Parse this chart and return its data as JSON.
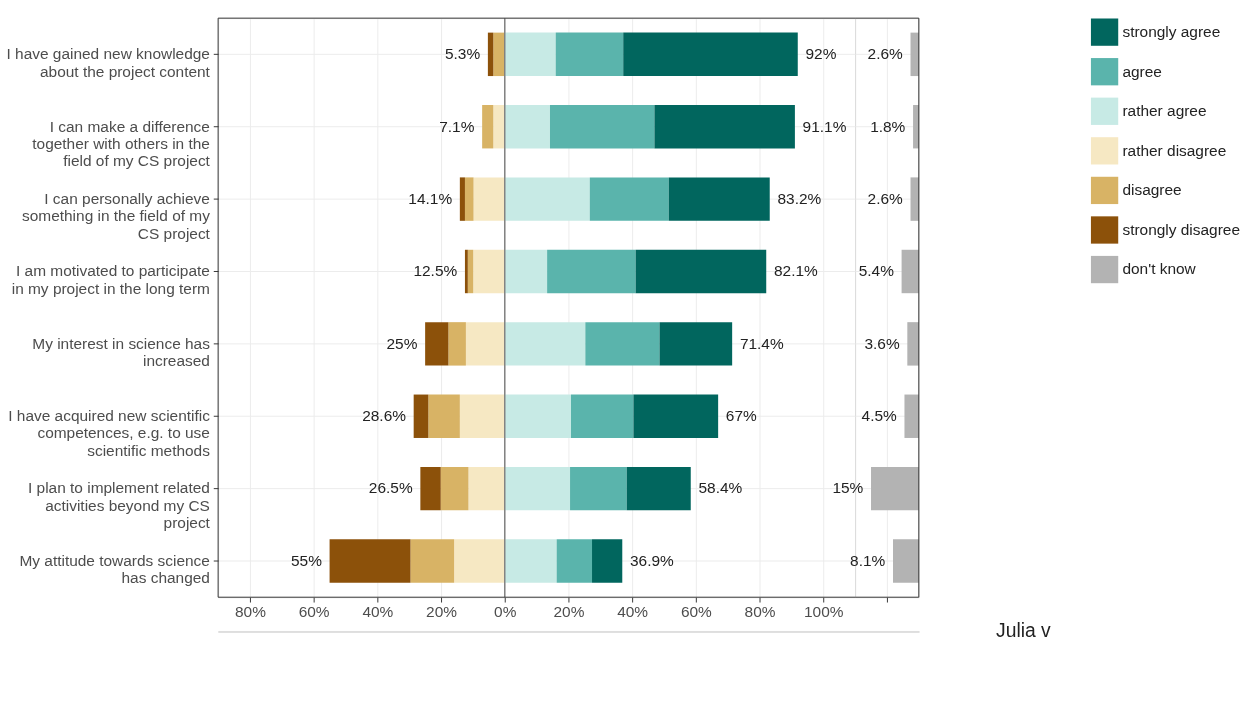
{
  "chart_data": [
    {
      "type": "bar",
      "orientation": "horizontal",
      "stacked": true,
      "categories": [
        "I have gained new knowledge\nabout the project content",
        "I can make a difference\ntogether with others in the\nfield of my CS project",
        "I can personally achieve\nsomething in the field of my\nCS project",
        "I am motivated to participate\nin my project in the long term",
        "My interest in science has\nincreased",
        "I have acquired new scientific\ncompetences, e.g. to use\nscientific methods",
        "I plan to implement related\nactivities beyond my CS\nproject",
        "My attitude towards science\nhas changed"
      ],
      "series": [
        {
          "name": "rather agree",
          "color": "#c7eae5",
          "values": [
            16.0,
            14.2,
            26.7,
            13.3,
            25.3,
            20.8,
            20.5,
            16.3
          ]
        },
        {
          "name": "agree",
          "color": "#5ab4ac",
          "values": [
            21.2,
            32.8,
            24.8,
            27.8,
            23.3,
            19.6,
            17.8,
            11.1
          ]
        },
        {
          "name": "strongly agree",
          "color": "#01665e",
          "values": [
            54.8,
            44.1,
            31.7,
            41.0,
            22.8,
            26.6,
            20.1,
            9.5
          ]
        },
        {
          "name": "rather disagree",
          "color": "#f6e8c3",
          "values": [
            0,
            -3.6,
            -9.8,
            -9.9,
            -12.2,
            -14.1,
            -11.4,
            -15.9
          ]
        },
        {
          "name": "disagree",
          "color": "#d8b365",
          "values": [
            -3.6,
            -3.5,
            -2.7,
            -1.7,
            -5.5,
            -9.9,
            -8.7,
            -13.7
          ]
        },
        {
          "name": "strongly disagree",
          "color": "#8c510a",
          "values": [
            -1.7,
            0,
            -1.6,
            -0.9,
            -7.3,
            -4.6,
            -6.4,
            -25.4
          ]
        }
      ],
      "xlim": [
        -90,
        110
      ],
      "xticks": [
        {
          "value": -80,
          "label": "80%"
        },
        {
          "value": -60,
          "label": "60%"
        },
        {
          "value": -40,
          "label": "40%"
        },
        {
          "value": -20,
          "label": "20%"
        },
        {
          "value": 0,
          "label": "0%"
        },
        {
          "value": 20,
          "label": "20%"
        },
        {
          "value": 40,
          "label": "40%"
        },
        {
          "value": 60,
          "label": "60%"
        },
        {
          "value": 80,
          "label": "80%"
        },
        {
          "value": 100,
          "label": "100%"
        }
      ],
      "ref_lines": [
        {
          "axis": "x",
          "value": 0,
          "color": "#7f7f7f"
        }
      ],
      "grid": true,
      "legend": "right",
      "annotations": [
        {
          "text": "5.3%",
          "x": -5.3,
          "y": "I have gained new knowledge\nabout the project content"
        },
        {
          "text": "7.1%",
          "x": -7.1,
          "y": "I can make a difference\ntogether with others in the\nfield of my CS project"
        },
        {
          "text": "14.1%",
          "x": -14.1,
          "y": "I can personally achieve\nsomething in the field of my\nCS project"
        },
        {
          "text": "12.5%",
          "x": -12.5,
          "y": "I am motivated to participate\nin my project in the long term"
        },
        {
          "text": "25%",
          "x": -25,
          "y": "My interest in science has\nincreased"
        },
        {
          "text": "28.6%",
          "x": -28.6,
          "y": "I have acquired new scientific\ncompetences, e.g. to use\nscientific methods"
        },
        {
          "text": "26.5%",
          "x": -26.5,
          "y": "I plan to implement related\nactivities beyond my CS\nproject"
        },
        {
          "text": "55%",
          "x": -55,
          "y": "My attitude towards science\nhas changed"
        },
        {
          "text": "92%",
          "x": 92,
          "y": "I have gained new knowledge\nabout the project content"
        },
        {
          "text": "91.1%",
          "x": 91.1,
          "y": "I can make a difference\ntogether with others in the\nfield of my CS project"
        },
        {
          "text": "83.2%",
          "x": 83.2,
          "y": "I can personally achieve\nsomething in the field of my\nCS project"
        },
        {
          "text": "82.1%",
          "x": 82.1,
          "y": "I am motivated to participate\nin my project in the long term"
        },
        {
          "text": "71.4%",
          "x": 71.4,
          "y": "My interest in science has\nincreased"
        },
        {
          "text": "67%",
          "x": 67,
          "y": "I have acquired new scientific\ncompetences, e.g. to use\nscientific methods"
        },
        {
          "text": "58.4%",
          "x": 58.4,
          "y": "I plan to implement related\nactivities beyond my CS\nproject"
        },
        {
          "text": "36.9%",
          "x": 36.9,
          "y": "My attitude towards science\nhas changed"
        },
        "Julia v"
      ]
    },
    {
      "type": "bar",
      "orientation": "horizontal",
      "categories": [
        null,
        null,
        null,
        null,
        null,
        null,
        null,
        null
      ],
      "series": [
        {
          "name": "don't know",
          "color": "#b3b3b3",
          "values": [
            2.6,
            1.8,
            2.6,
            5.4,
            3.6,
            4.5,
            15,
            8.1
          ],
          "value_labels": [
            "2.6%",
            "1.8%",
            "2.6%",
            "5.4%",
            "3.6%",
            "4.5%",
            "15%",
            "8.1%"
          ]
        }
      ],
      "xlim": [
        20,
        0
      ],
      "xticks": [
        {
          "value": 10,
          "label": null
        }
      ],
      "grid": true,
      "legend": "right"
    }
  ]
}
